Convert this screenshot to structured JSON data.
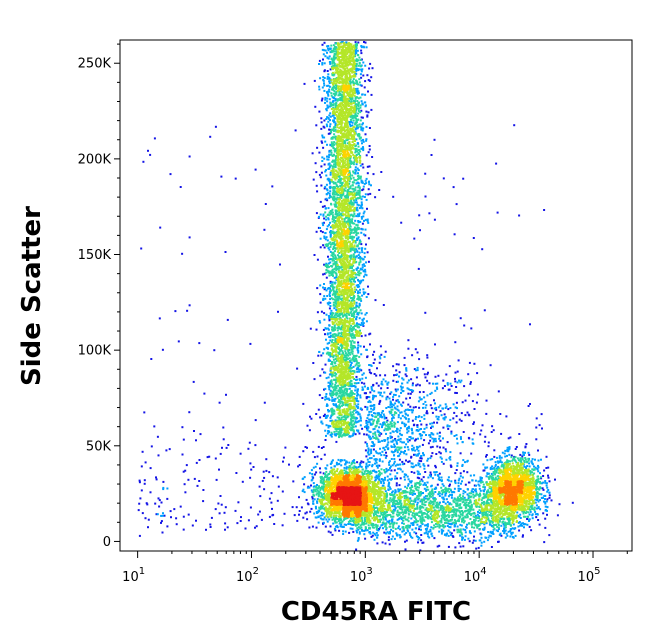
{
  "chart_data": {
    "type": "scatter",
    "subtype": "density-dot-plot",
    "title": "",
    "xlabel": "CD45RA FITC",
    "ylabel": "Side Scatter",
    "x_scale": "log",
    "xlim": [
      7,
      220000
    ],
    "ylim": [
      -5000,
      262144
    ],
    "x_ticks": [
      {
        "value": 10,
        "base": "10",
        "exp": "1"
      },
      {
        "value": 100,
        "base": "10",
        "exp": "2"
      },
      {
        "value": 1000,
        "base": "10",
        "exp": "3"
      },
      {
        "value": 10000,
        "base": "10",
        "exp": "4"
      },
      {
        "value": 100000,
        "base": "10",
        "exp": "5"
      }
    ],
    "y_ticks": [
      {
        "value": 0,
        "label": "0"
      },
      {
        "value": 50000,
        "label": "50K"
      },
      {
        "value": 100000,
        "label": "100K"
      },
      {
        "value": 150000,
        "label": "150K"
      },
      {
        "value": 200000,
        "label": "200K"
      },
      {
        "value": 250000,
        "label": "250K"
      }
    ],
    "color_scale": [
      "#1414e6",
      "#00a0ff",
      "#28d7a0",
      "#b4e628",
      "#ffd200",
      "#ff7800",
      "#e61414"
    ],
    "populations": [
      {
        "name": "granulocyte band",
        "x_log10_center": 2.82,
        "y_center": 160000,
        "y_range": [
          55000,
          262000
        ],
        "density_peak_y": 145000
      },
      {
        "name": "lower-left cluster",
        "x_center": 700,
        "y_center": 25000
      },
      {
        "name": "lower-right cluster",
        "x_center": 20000,
        "y_center": 28000
      },
      {
        "name": "connecting band",
        "x_range": [
          1000,
          15000
        ],
        "y_center": 18000
      }
    ],
    "legend": "none",
    "grid": false
  }
}
